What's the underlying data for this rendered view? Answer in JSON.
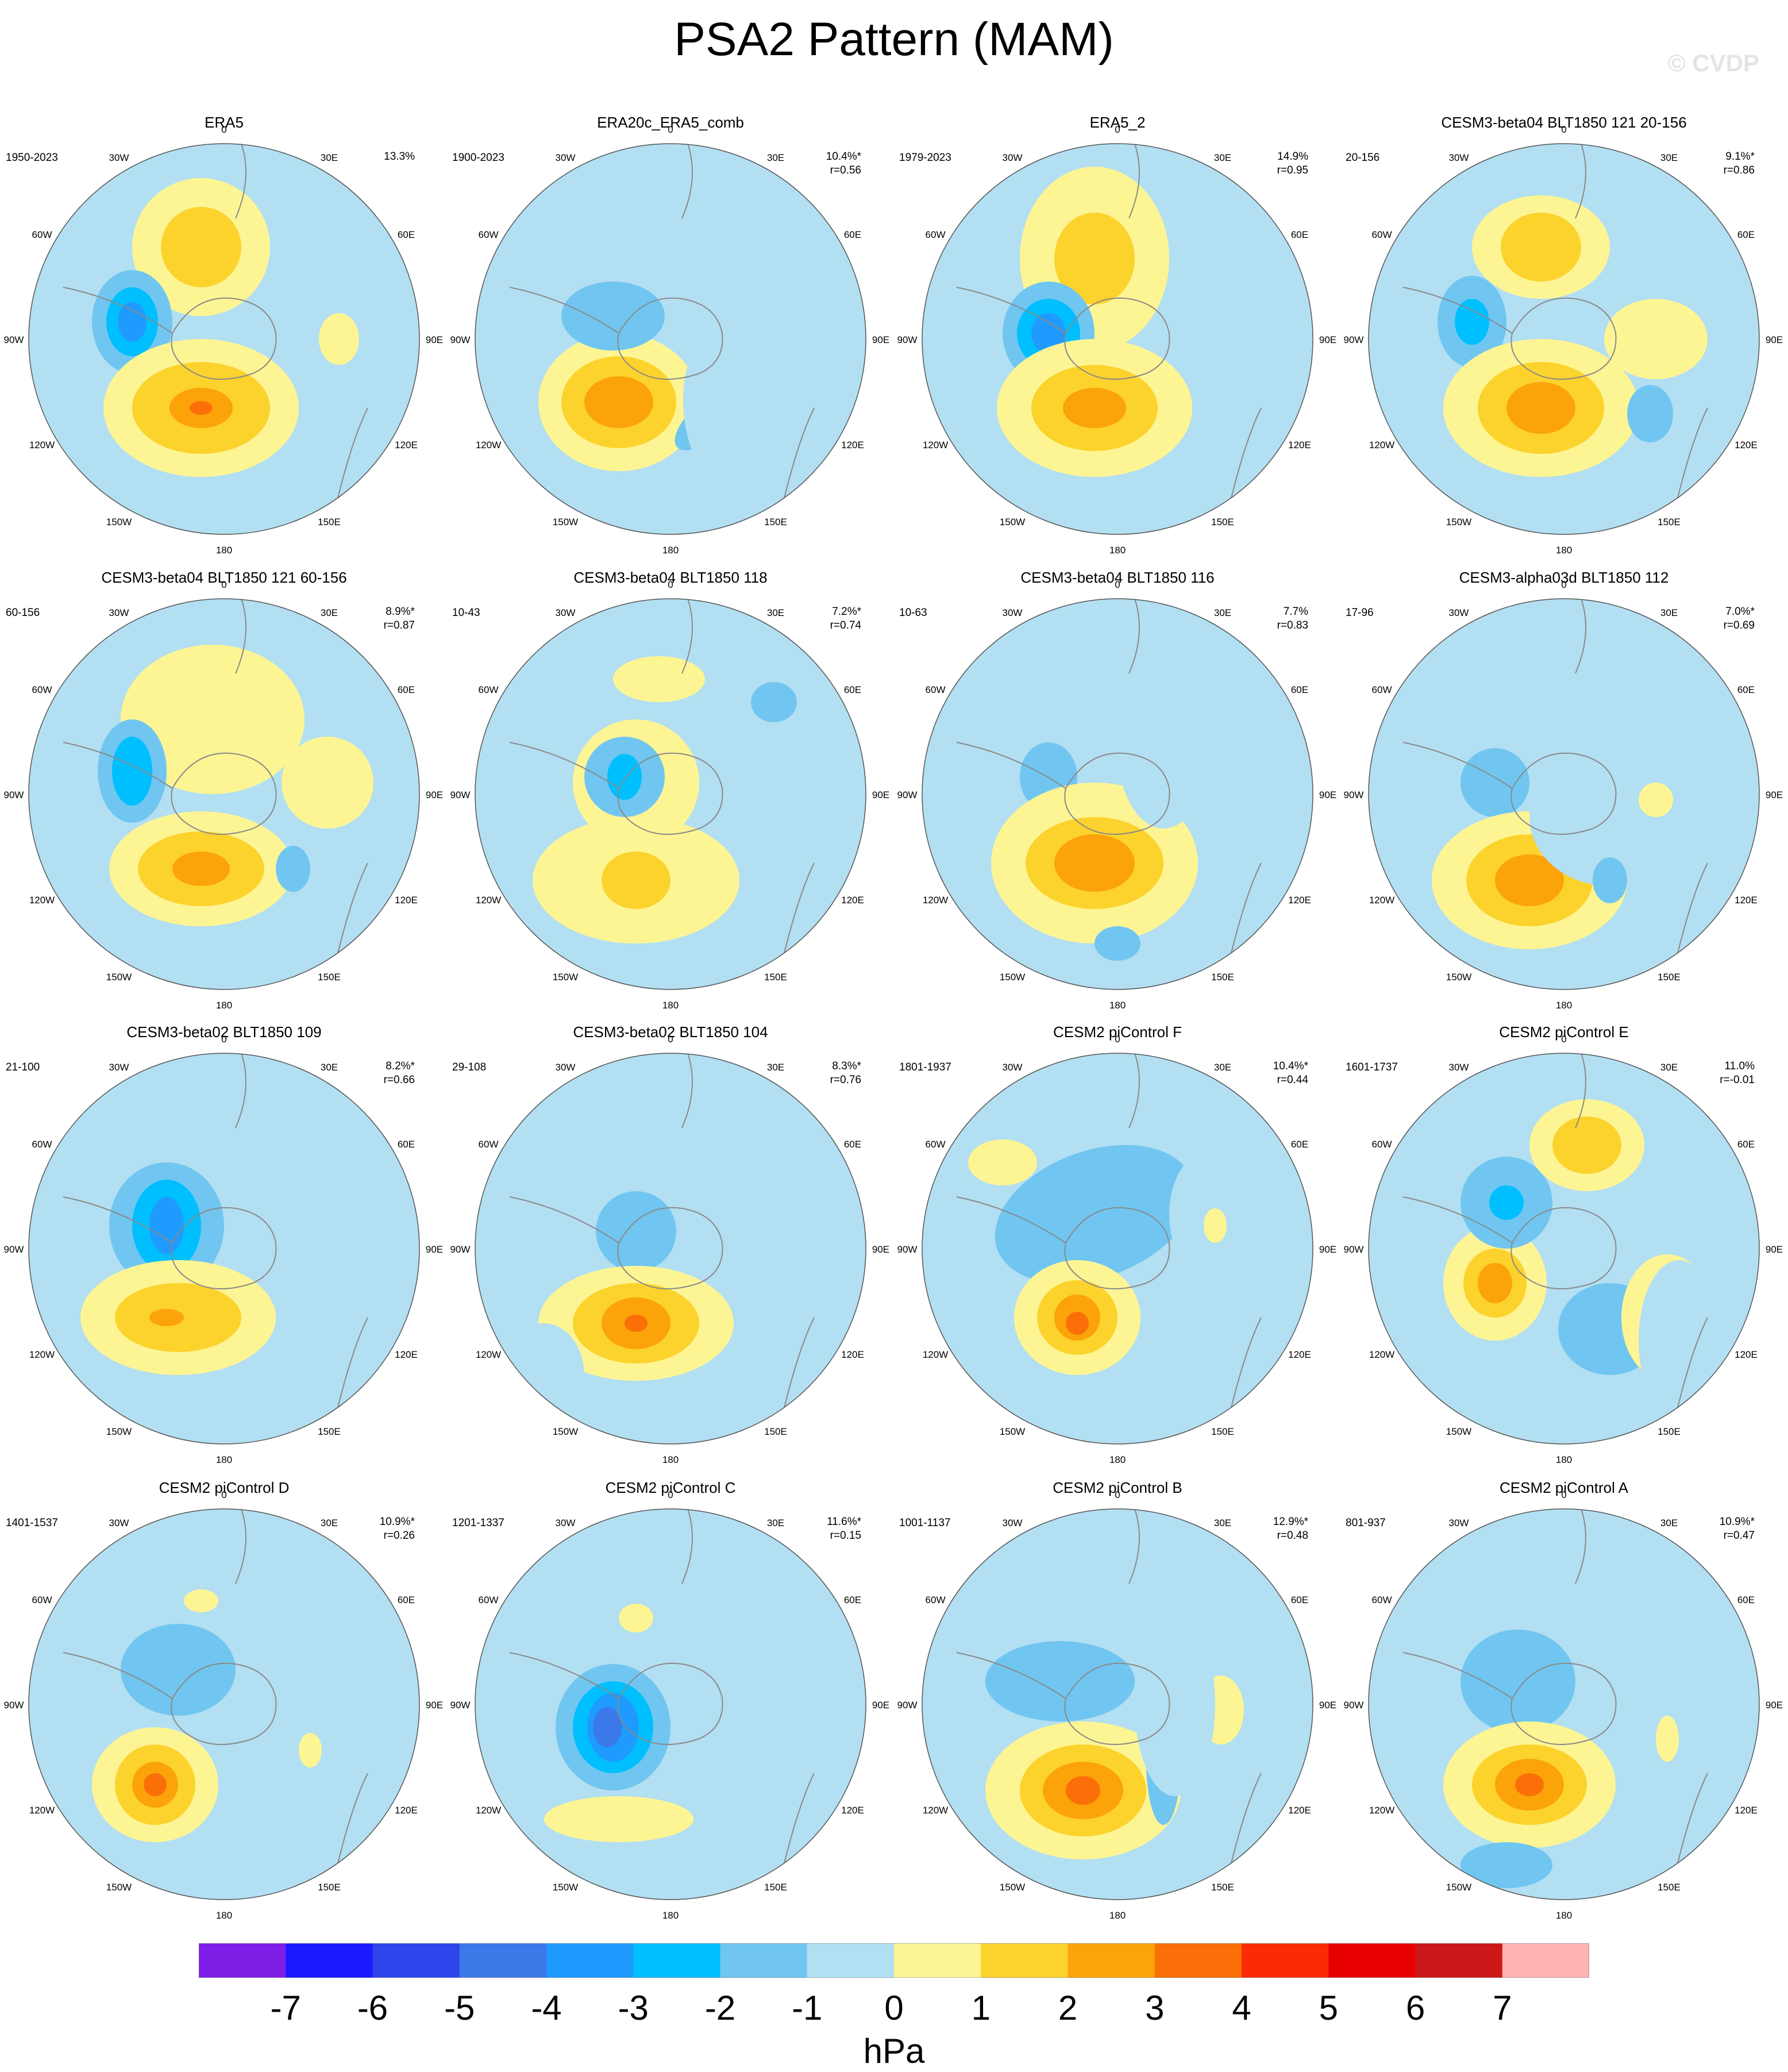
{
  "title": "PSA2 Pattern (MAM)",
  "watermark": "© CVDP",
  "lon_labels": [
    "0",
    "30E",
    "60E",
    "90E",
    "120E",
    "150E",
    "180",
    "150W",
    "120W",
    "90W",
    "60W",
    "30W"
  ],
  "colorbar": {
    "units": "hPa",
    "ticks": [
      "-7",
      "-6",
      "-5",
      "-4",
      "-3",
      "-2",
      "-1",
      "0",
      "1",
      "2",
      "3",
      "4",
      "5",
      "6",
      "7"
    ],
    "colors": [
      "#7e1fe8",
      "#1a1aff",
      "#2d45ea",
      "#3b78e8",
      "#1f9bff",
      "#00bfff",
      "#70c6f0",
      "#b3dff2",
      "#fdf594",
      "#fcd22c",
      "#fba309",
      "#fa6f08",
      "#fb2b04",
      "#e80000",
      "#cc1818",
      "#ffb3b3"
    ]
  },
  "chart_data": [
    {
      "type": "contour-map",
      "title": "ERA5",
      "period": "1950-2023",
      "pct": "13.3%",
      "r": ""
    },
    {
      "type": "contour-map",
      "title": "ERA20c_ERA5_comb",
      "period": "1900-2023",
      "pct": "10.4%*",
      "r": "r=0.56"
    },
    {
      "type": "contour-map",
      "title": "ERA5_2",
      "period": "1979-2023",
      "pct": "14.9%",
      "r": "r=0.95"
    },
    {
      "type": "contour-map",
      "title": "CESM3-beta04 BLT1850 121 20-156",
      "period": "20-156",
      "pct": "9.1%*",
      "r": "r=0.86"
    },
    {
      "type": "contour-map",
      "title": "CESM3-beta04 BLT1850 121 60-156",
      "period": "60-156",
      "pct": "8.9%*",
      "r": "r=0.87"
    },
    {
      "type": "contour-map",
      "title": "CESM3-beta04 BLT1850 118",
      "period": "10-43",
      "pct": "7.2%*",
      "r": "r=0.74"
    },
    {
      "type": "contour-map",
      "title": "CESM3-beta04 BLT1850 116",
      "period": "10-63",
      "pct": "7.7%",
      "r": "r=0.83"
    },
    {
      "type": "contour-map",
      "title": "CESM3-alpha03d BLT1850 112",
      "period": "17-96",
      "pct": "7.0%*",
      "r": "r=0.69"
    },
    {
      "type": "contour-map",
      "title": "CESM3-beta02 BLT1850 109",
      "period": "21-100",
      "pct": "8.2%*",
      "r": "r=0.66"
    },
    {
      "type": "contour-map",
      "title": "CESM3-beta02 BLT1850 104",
      "period": "29-108",
      "pct": "8.3%*",
      "r": "r=0.76"
    },
    {
      "type": "contour-map",
      "title": "CESM2 piControl F",
      "period": "1801-1937",
      "pct": "10.4%*",
      "r": "r=0.44"
    },
    {
      "type": "contour-map",
      "title": "CESM2 piControl E",
      "period": "1601-1737",
      "pct": "11.0%",
      "r": "r=-0.01"
    },
    {
      "type": "contour-map",
      "title": "CESM2 piControl D",
      "period": "1401-1537",
      "pct": "10.9%*",
      "r": "r=0.26"
    },
    {
      "type": "contour-map",
      "title": "CESM2 piControl C",
      "period": "1201-1337",
      "pct": "11.6%*",
      "r": "r=0.15"
    },
    {
      "type": "contour-map",
      "title": "CESM2 piControl B",
      "period": "1001-1137",
      "pct": "12.9%*",
      "r": "r=0.48"
    },
    {
      "type": "contour-map",
      "title": "CESM2 piControl A",
      "period": "801-937",
      "pct": "10.9%*",
      "r": "r=0.47"
    }
  ]
}
